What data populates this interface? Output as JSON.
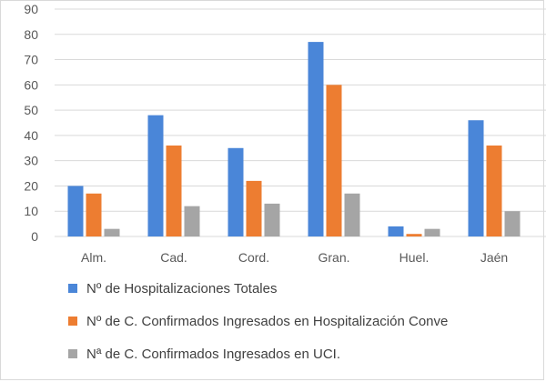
{
  "chart_data": {
    "type": "bar",
    "categories": [
      "Alm.",
      "Cad.",
      "Cord.",
      "Gran.",
      "Huel.",
      "Jaén"
    ],
    "series": [
      {
        "name": "Nº de Hospitalizaciones Totales",
        "color": "#4a86d8",
        "values": [
          20,
          48,
          35,
          77,
          4,
          46
        ]
      },
      {
        "name": "Nº de C. Confirmados Ingresados en Hospitalización Conve",
        "color": "#ed7d31",
        "values": [
          17,
          36,
          22,
          60,
          1,
          36
        ]
      },
      {
        "name": "Nª de C. Confirmados Ingresados en UCI.",
        "color": "#a5a5a5",
        "values": [
          3,
          12,
          13,
          17,
          3,
          10
        ]
      }
    ],
    "yticks": [
      "0",
      "10",
      "20",
      "30",
      "40",
      "50",
      "60",
      "70",
      "80",
      "90"
    ],
    "ylim": [
      0,
      90
    ],
    "grid": true,
    "legend_position": "bottom"
  }
}
